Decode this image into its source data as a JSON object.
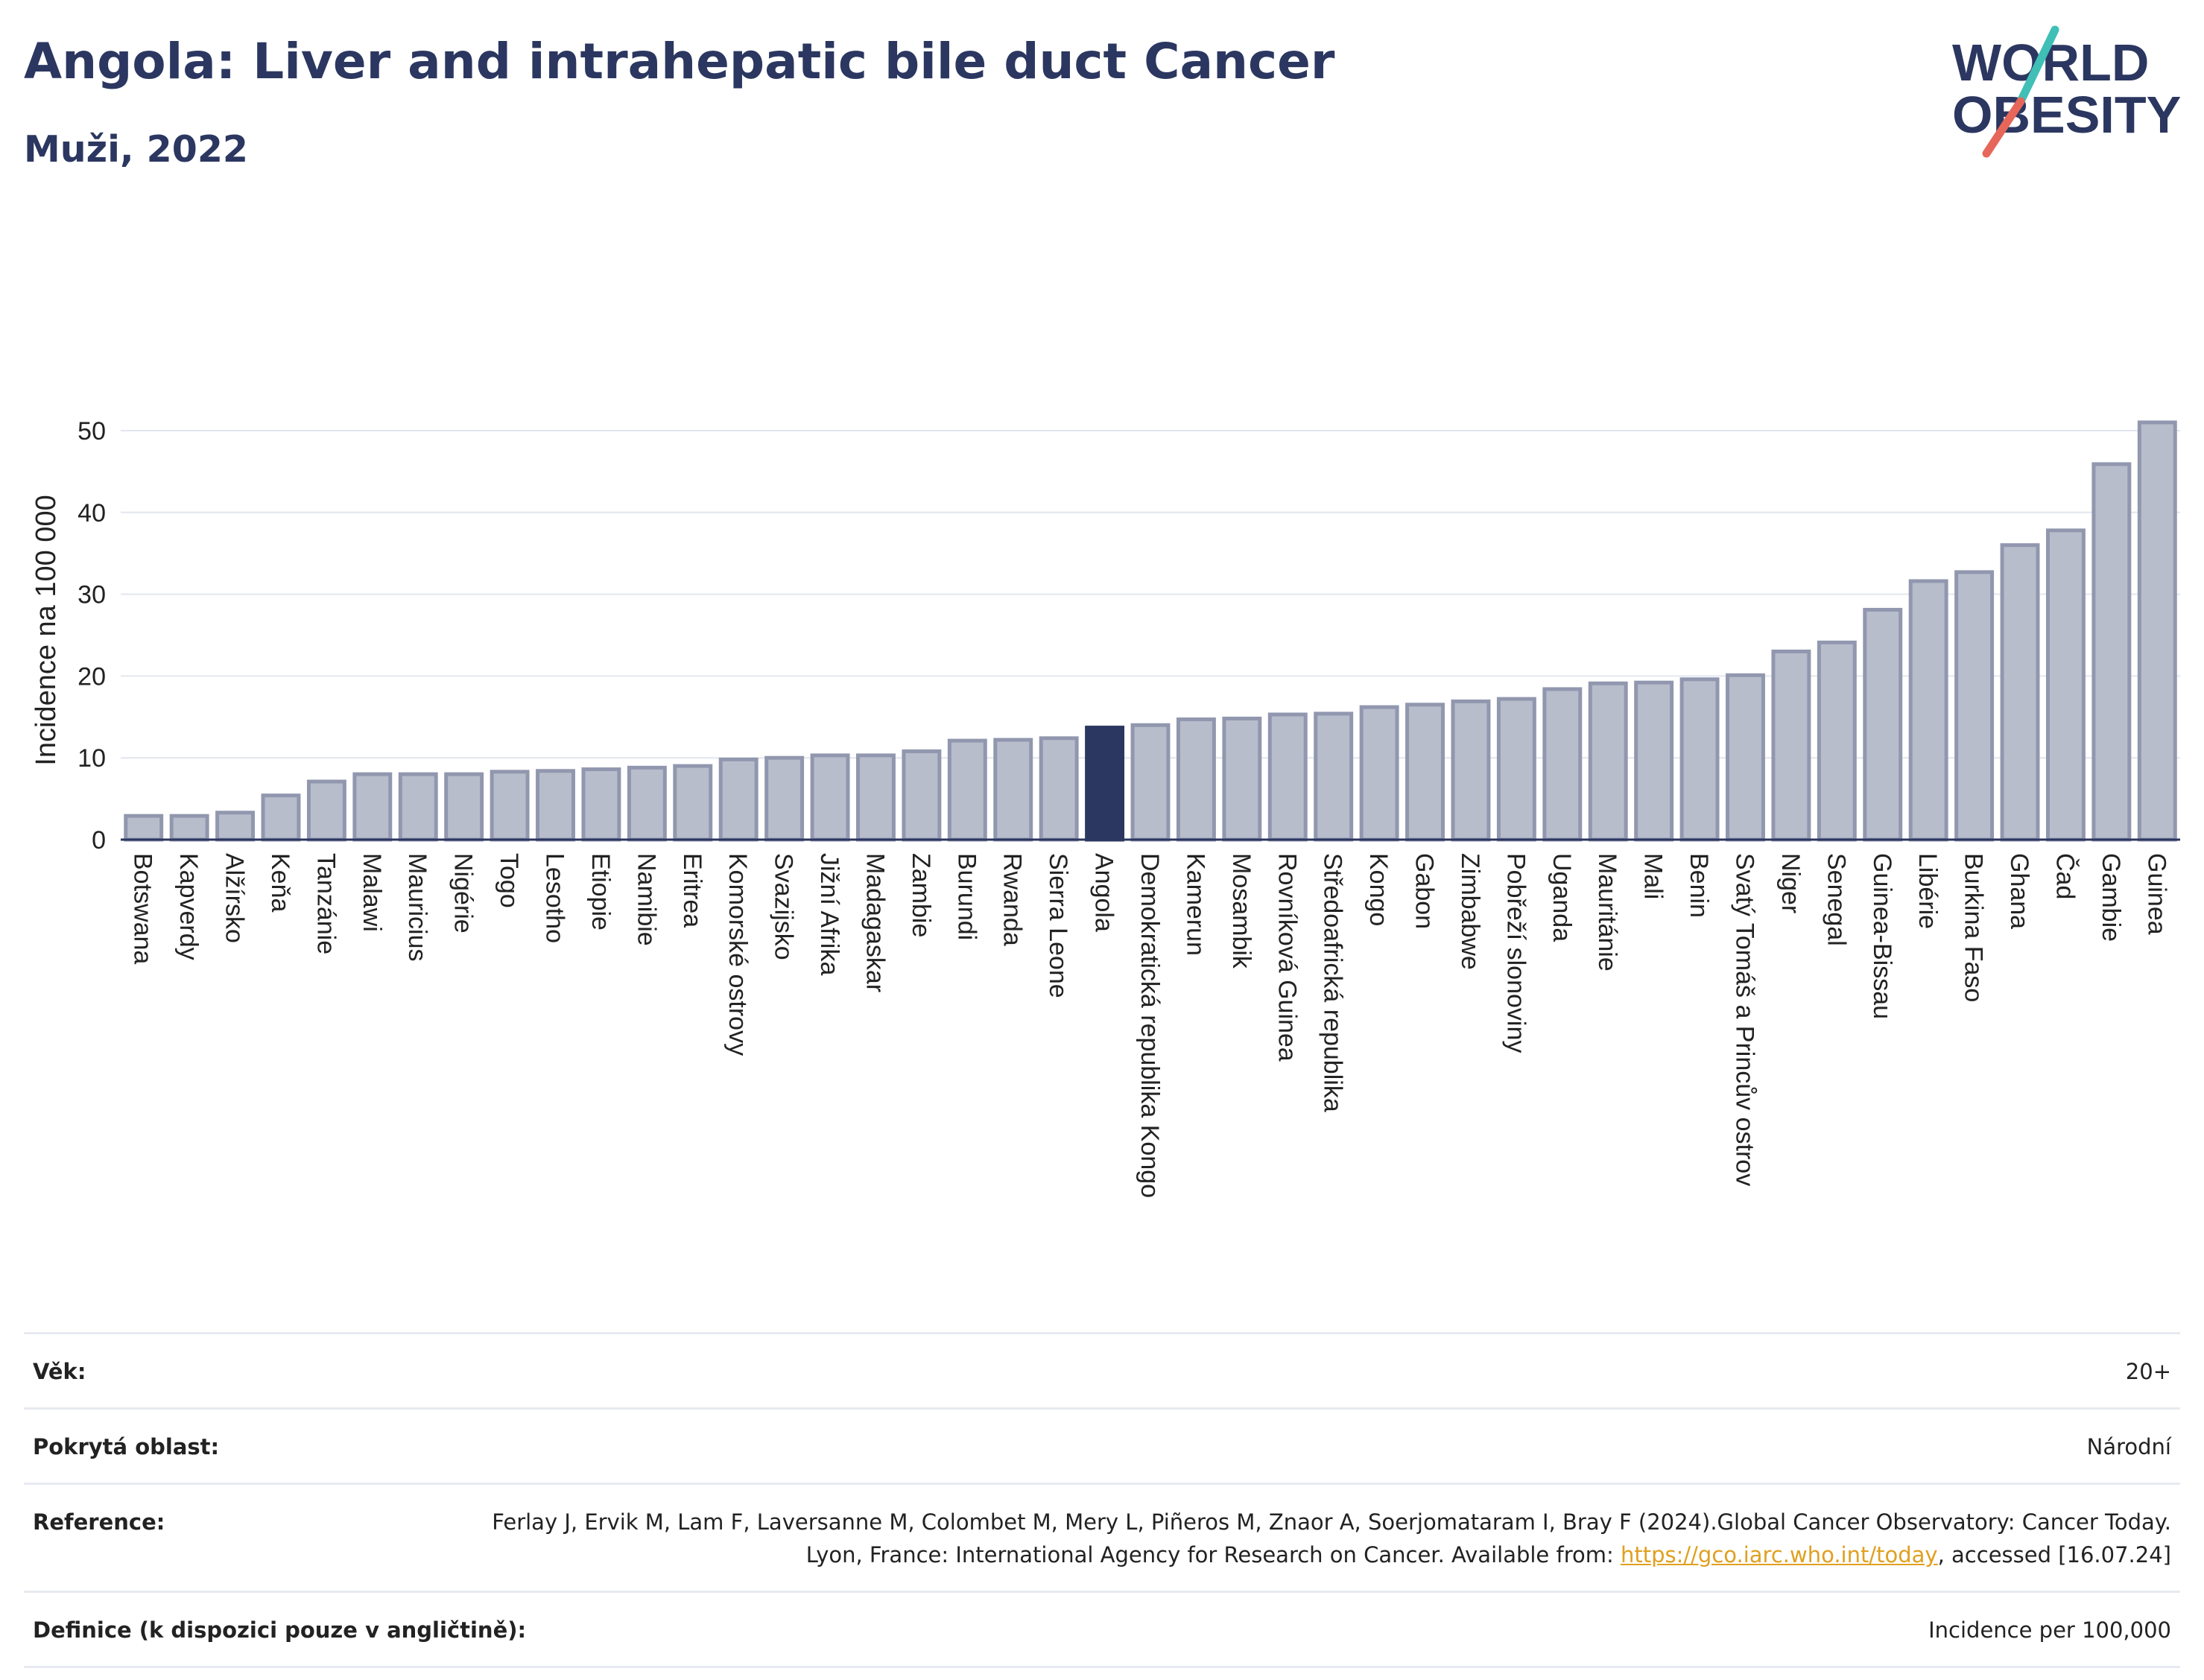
{
  "title": "Angola: Liver and intrahepatic bile duct Cancer",
  "subtitle": "Muži, 2022",
  "logo": {
    "line1": "WORLD",
    "line2": "OBESITY"
  },
  "colors": {
    "bar": "#b8bdcc",
    "bar_outline": "#9197ae",
    "highlight": "#2b3760",
    "title": "#2b3760",
    "grid": "#e3e6ee",
    "logo_teal": "#3fbfb6",
    "logo_red": "#e7665a"
  },
  "chart_data": {
    "type": "bar",
    "ylabel": "Incidence na 100 000",
    "xlabel": "",
    "ylim": [
      0,
      53
    ],
    "yticks": [
      0,
      10,
      20,
      30,
      40,
      50
    ],
    "grid": true,
    "highlight": "Angola",
    "categories": [
      "Botswana",
      "Kapverdy",
      "Alžírsko",
      "Keňa",
      "Tanzánie",
      "Malawi",
      "Mauricius",
      "Nigérie",
      "Togo",
      "Lesotho",
      "Etiopie",
      "Namibie",
      "Eritrea",
      "Komorské ostrovy",
      "Svazijsko",
      "Jižní Afrika",
      "Madagaskar",
      "Zambie",
      "Burundi",
      "Rwanda",
      "Sierra Leone",
      "Angola",
      "Demokratická republika Kongo",
      "Kamerun",
      "Mosambik",
      "Rovníková Guinea",
      "Středoafrická republika",
      "Kongo",
      "Gabon",
      "Zimbabwe",
      "Pobřeží slonoviny",
      "Uganda",
      "Mauritánie",
      "Mali",
      "Benin",
      "Svatý Tomáš a Princův ostrov",
      "Niger",
      "Senegal",
      "Guinea-Bissau",
      "Libérie",
      "Burkina Faso",
      "Ghana",
      "Čad",
      "Gambie",
      "Guinea"
    ],
    "values": [
      2.9,
      2.9,
      3.3,
      5.4,
      7.1,
      8.0,
      8.0,
      8.0,
      8.3,
      8.4,
      8.6,
      8.8,
      9.0,
      9.8,
      10.0,
      10.3,
      10.3,
      10.8,
      12.1,
      12.2,
      12.4,
      13.7,
      14.0,
      14.7,
      14.8,
      15.3,
      15.4,
      16.2,
      16.5,
      16.9,
      17.2,
      18.4,
      19.1,
      19.2,
      19.6,
      20.1,
      23.0,
      24.1,
      28.1,
      31.6,
      32.7,
      36.0,
      37.8,
      45.9,
      51.0
    ]
  },
  "meta": [
    {
      "label": "Věk:",
      "value": "20+"
    },
    {
      "label": "Pokrytá oblast:",
      "value": "Národní"
    },
    {
      "label": "Reference:",
      "value": "Ferlay J, Ervik M, Lam F, Laversanne M, Colombet M, Mery L, Piñeros M, Znaor A, Soerjomataram I, Bray F (2024).Global Cancer Observatory: Cancer Today. Lyon, France: International Agency for Research on Cancer. Available from: ",
      "link": "https://gco.iarc.who.int/today",
      "value_after": ", accessed [16.07.24]"
    },
    {
      "label": "Definice (k dispozici pouze v angličtině):",
      "value": "Incidence per 100,000"
    }
  ]
}
